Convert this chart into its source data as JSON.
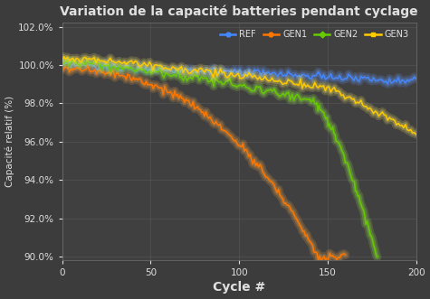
{
  "title": "Variation de la capacité batteries pendant cyclage",
  "xlabel": "Cycle #",
  "ylabel": "Capacité relatif (%)",
  "background_color": "#3c3c3c",
  "axes_background": "#404040",
  "grid_color": "#585858",
  "text_color": "#e0e0e0",
  "xlim": [
    0,
    200
  ],
  "ylim": [
    0.898,
    1.022
  ],
  "yticks": [
    0.9,
    0.92,
    0.94,
    0.96,
    0.98,
    1.0,
    1.02
  ],
  "xticks": [
    0,
    50,
    100,
    150,
    200
  ],
  "series": [
    {
      "name": "REF",
      "color": "#4488ff",
      "glow": "#6699ff"
    },
    {
      "name": "GEN1",
      "color": "#ff7700",
      "glow": "#ffaa44"
    },
    {
      "name": "GEN2",
      "color": "#66cc00",
      "glow": "#99ee44"
    },
    {
      "name": "GEN3",
      "color": "#ffcc00",
      "glow": "#ffee66"
    }
  ]
}
